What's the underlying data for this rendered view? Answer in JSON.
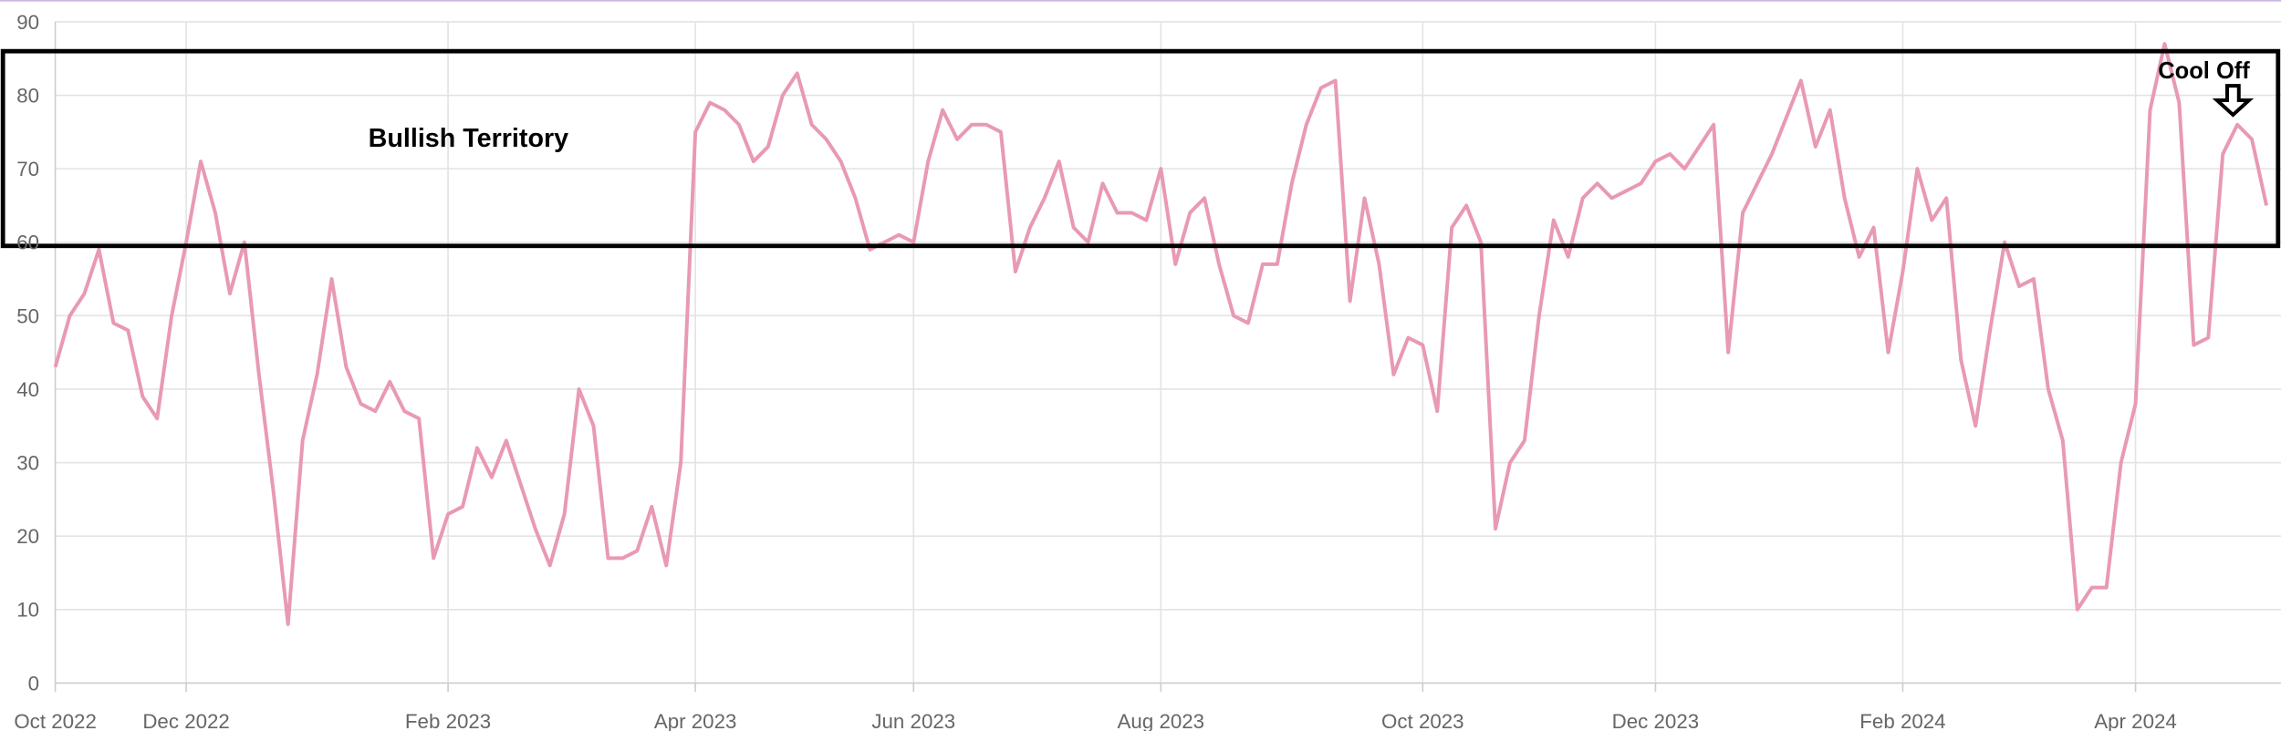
{
  "chart_data": {
    "type": "line",
    "categories": [
      "Oct 2022",
      null,
      null,
      null,
      null,
      null,
      null,
      null,
      null,
      "Dec 2022",
      null,
      null,
      null,
      null,
      null,
      null,
      null,
      null,
      null,
      null,
      null,
      null,
      null,
      null,
      null,
      null,
      null,
      "Feb 2023",
      null,
      null,
      null,
      null,
      null,
      null,
      null,
      null,
      null,
      null,
      null,
      null,
      null,
      null,
      null,
      null,
      "Apr 2023",
      null,
      null,
      null,
      null,
      null,
      null,
      null,
      null,
      null,
      null,
      null,
      null,
      null,
      null,
      "Jun 2023",
      null,
      null,
      null,
      null,
      null,
      null,
      null,
      null,
      null,
      null,
      null,
      null,
      null,
      null,
      null,
      null,
      "Aug 2023",
      null,
      null,
      null,
      null,
      null,
      null,
      null,
      null,
      null,
      null,
      null,
      null,
      null,
      null,
      null,
      null,
      null,
      "Oct 2023",
      null,
      null,
      null,
      null,
      null,
      null,
      null,
      null,
      null,
      null,
      null,
      null,
      null,
      null,
      null,
      "Dec 2023",
      null,
      null,
      null,
      null,
      null,
      null,
      null,
      null,
      null,
      null,
      null,
      null,
      null,
      null,
      null,
      null,
      "Feb 2024",
      null,
      null,
      null,
      null,
      null,
      null,
      null,
      null,
      null,
      null,
      null,
      null,
      null,
      null,
      null,
      "Apr 2024",
      null,
      null,
      null,
      null,
      null,
      null,
      null,
      null,
      null
    ],
    "values": [
      43,
      50,
      53,
      59,
      49,
      48,
      39,
      36,
      50,
      60,
      71,
      64,
      53,
      60,
      42,
      26,
      8,
      33,
      42,
      55,
      43,
      38,
      37,
      41,
      37,
      36,
      17,
      23,
      24,
      32,
      28,
      33,
      27,
      21,
      16,
      23,
      40,
      35,
      17,
      17,
      18,
      24,
      16,
      30,
      75,
      79,
      78,
      76,
      71,
      73,
      80,
      83,
      76,
      74,
      71,
      66,
      59,
      60,
      61,
      60,
      71,
      78,
      74,
      76,
      76,
      75,
      56,
      62,
      66,
      71,
      62,
      60,
      68,
      64,
      64,
      63,
      70,
      57,
      64,
      66,
      57,
      50,
      49,
      57,
      57,
      68,
      76,
      81,
      82,
      52,
      66,
      57,
      42,
      47,
      46,
      37,
      62,
      65,
      60,
      21,
      30,
      33,
      50,
      63,
      58,
      66,
      68,
      66,
      67,
      68,
      71,
      72,
      70,
      73,
      76,
      45,
      64,
      68,
      72,
      77,
      82,
      73,
      78,
      66,
      58,
      62,
      45,
      56,
      70,
      63,
      66,
      44,
      35,
      48,
      60,
      54,
      55,
      40,
      33,
      10,
      13,
      13,
      30,
      38,
      78,
      87,
      79,
      46,
      47,
      72,
      76,
      74,
      65
    ],
    "color": "#e899b6",
    "ylim": [
      0,
      90
    ],
    "yticks": [
      0,
      10,
      20,
      30,
      40,
      50,
      60,
      70,
      80,
      90
    ],
    "grid": true,
    "zone": [
      59.5,
      86
    ],
    "annotations": [
      "Bullish Territory",
      "Cool Off"
    ]
  }
}
